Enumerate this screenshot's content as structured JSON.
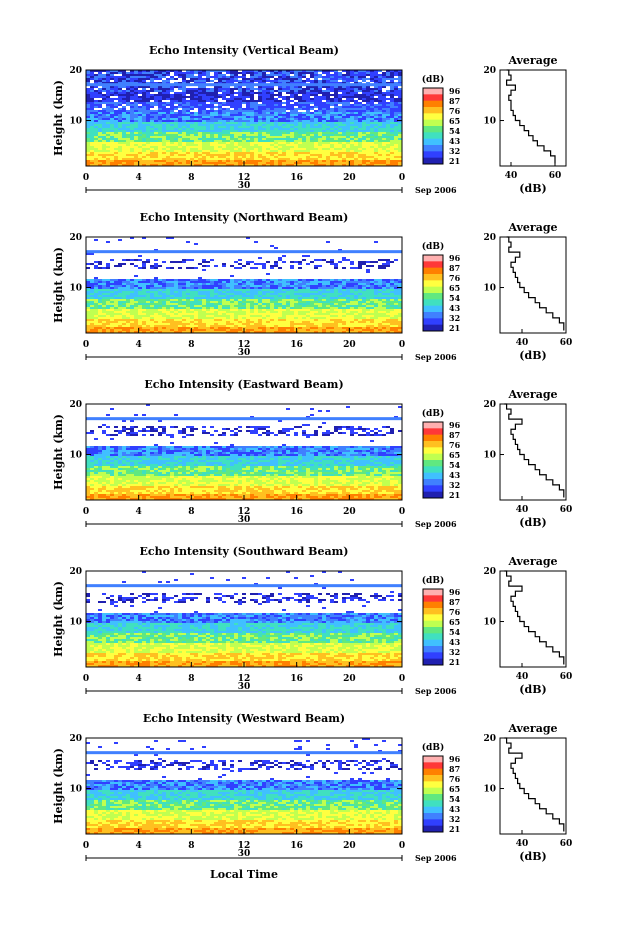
{
  "figure": {
    "x_label": "Local Time",
    "date_label_day": "30",
    "date_label_month": "Sep 2006",
    "y_label": "Height (km)",
    "colorbar_unit": "(dB)",
    "profile_title": "Average",
    "profile_xlabel": "(dB)"
  },
  "colorscale": {
    "ticks": [
      "96",
      "87",
      "76",
      "65",
      "54",
      "43",
      "32",
      "21"
    ],
    "colors": [
      "#ffb0b0",
      "#ff3838",
      "#ff8000",
      "#ffc020",
      "#ffff40",
      "#c0ff50",
      "#60e880",
      "#40e0c0",
      "#40c0ff",
      "#4080ff",
      "#3040ff",
      "#2020b0"
    ]
  },
  "chart_data": [
    {
      "type": "heatmap",
      "title": "Echo Intensity (Vertical Beam)",
      "xlabel": "Local Time",
      "ylabel": "Height (km)",
      "x_ticks": [
        "0",
        "4",
        "8",
        "12",
        "16",
        "20",
        "0"
      ],
      "y_ticks": [
        "20",
        "10"
      ],
      "xlim": [
        0,
        24
      ],
      "ylim": [
        1,
        20
      ],
      "value_range_db": [
        21,
        96
      ],
      "profile": {
        "title": "Average",
        "xlabel": "(dB)",
        "x_ticks": [
          "40",
          "60"
        ],
        "y_ticks": [
          "20",
          "10"
        ],
        "xlim": [
          35,
          65
        ],
        "ylim": [
          1,
          20
        ],
        "height_km": [
          1.5,
          3,
          4,
          5,
          6,
          7,
          8,
          9,
          10,
          11,
          12,
          13,
          14,
          15,
          16,
          17,
          18,
          19,
          20
        ],
        "db": [
          60,
          58,
          55,
          52,
          50,
          48,
          46,
          44,
          42,
          41,
          40,
          40,
          39,
          40,
          42,
          38,
          40,
          39,
          38
        ]
      }
    },
    {
      "type": "heatmap",
      "title": "Echo Intensity (Northward Beam)",
      "xlabel": "Local Time",
      "ylabel": "Height (km)",
      "x_ticks": [
        "0",
        "4",
        "8",
        "12",
        "16",
        "20",
        "0"
      ],
      "y_ticks": [
        "20",
        "10"
      ],
      "xlim": [
        0,
        24
      ],
      "ylim": [
        1,
        20
      ],
      "value_range_db": [
        21,
        96
      ],
      "profile": {
        "title": "Average",
        "xlabel": "(dB)",
        "x_ticks": [
          "40",
          "60"
        ],
        "y_ticks": [
          "20",
          "10"
        ],
        "xlim": [
          30,
          60
        ],
        "ylim": [
          1,
          20
        ],
        "height_km": [
          1.5,
          3,
          4,
          5,
          6,
          7,
          8,
          9,
          10,
          11,
          12,
          13,
          14,
          15,
          16,
          17,
          18,
          19,
          20
        ],
        "db": [
          59,
          57,
          54,
          51,
          48,
          46,
          43,
          41,
          39,
          38,
          37,
          36,
          35,
          37,
          39,
          34,
          35,
          34,
          33
        ]
      }
    },
    {
      "type": "heatmap",
      "title": "Echo Intensity (Eastward Beam)",
      "xlabel": "Local Time",
      "ylabel": "Height (km)",
      "x_ticks": [
        "0",
        "4",
        "8",
        "12",
        "16",
        "20",
        "0"
      ],
      "y_ticks": [
        "20",
        "10"
      ],
      "xlim": [
        0,
        24
      ],
      "ylim": [
        1,
        20
      ],
      "value_range_db": [
        21,
        96
      ],
      "profile": {
        "title": "Average",
        "xlabel": "(dB)",
        "x_ticks": [
          "40",
          "60"
        ],
        "y_ticks": [
          "20",
          "10"
        ],
        "xlim": [
          30,
          60
        ],
        "ylim": [
          1,
          20
        ],
        "height_km": [
          1.5,
          3,
          4,
          5,
          6,
          7,
          8,
          9,
          10,
          11,
          12,
          13,
          14,
          15,
          16,
          17,
          18,
          19,
          20
        ],
        "db": [
          59,
          57,
          54,
          51,
          48,
          46,
          43,
          41,
          39,
          38,
          37,
          36,
          35,
          37,
          40,
          34,
          35,
          33,
          32
        ]
      }
    },
    {
      "type": "heatmap",
      "title": "Echo Intensity (Southward Beam)",
      "xlabel": "Local Time",
      "ylabel": "Height (km)",
      "x_ticks": [
        "0",
        "4",
        "8",
        "12",
        "16",
        "20",
        "0"
      ],
      "y_ticks": [
        "20",
        "10"
      ],
      "xlim": [
        0,
        24
      ],
      "ylim": [
        1,
        20
      ],
      "value_range_db": [
        21,
        96
      ],
      "profile": {
        "title": "Average",
        "xlabel": "(dB)",
        "x_ticks": [
          "40",
          "60"
        ],
        "y_ticks": [
          "20",
          "10"
        ],
        "xlim": [
          30,
          60
        ],
        "ylim": [
          1,
          20
        ],
        "height_km": [
          1.5,
          3,
          4,
          5,
          6,
          7,
          8,
          9,
          10,
          11,
          12,
          13,
          14,
          15,
          16,
          17,
          18,
          19,
          20
        ],
        "db": [
          59,
          57,
          54,
          51,
          48,
          46,
          43,
          41,
          39,
          38,
          37,
          36,
          35,
          37,
          40,
          34,
          35,
          33,
          32
        ]
      }
    },
    {
      "type": "heatmap",
      "title": "Echo Intensity (Westward Beam)",
      "xlabel": "Local Time",
      "ylabel": "Height (km)",
      "x_ticks": [
        "0",
        "4",
        "8",
        "12",
        "16",
        "20",
        "0"
      ],
      "y_ticks": [
        "20",
        "10"
      ],
      "xlim": [
        0,
        24
      ],
      "ylim": [
        1,
        20
      ],
      "value_range_db": [
        21,
        96
      ],
      "profile": {
        "title": "Average",
        "xlabel": "(dB)",
        "x_ticks": [
          "40",
          "60"
        ],
        "y_ticks": [
          "20",
          "10"
        ],
        "xlim": [
          30,
          60
        ],
        "ylim": [
          1,
          20
        ],
        "height_km": [
          1.5,
          3,
          4,
          5,
          6,
          7,
          8,
          9,
          10,
          11,
          12,
          13,
          14,
          15,
          16,
          17,
          18,
          19,
          20
        ],
        "db": [
          59,
          57,
          54,
          51,
          48,
          46,
          43,
          41,
          39,
          38,
          37,
          36,
          35,
          37,
          40,
          34,
          35,
          33,
          32
        ]
      }
    }
  ]
}
